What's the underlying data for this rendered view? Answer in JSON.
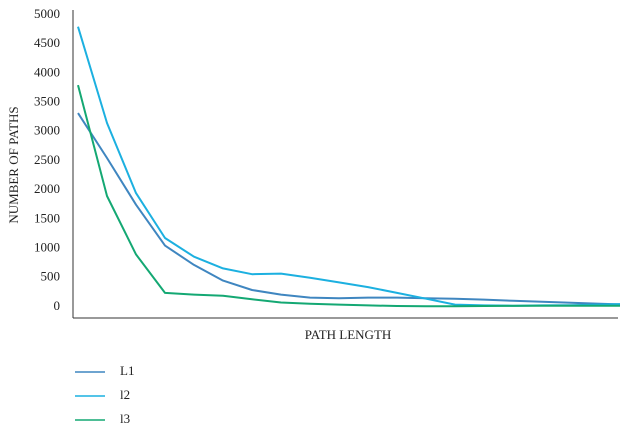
{
  "chart_data": {
    "type": "line",
    "xlabel": "PATH LENGTH",
    "ylabel": "NUMBER OF PATHS",
    "categories": [
      null,
      null,
      null,
      null,
      null,
      null,
      null,
      null,
      null,
      null,
      null,
      null,
      null,
      null,
      null,
      null,
      null,
      null,
      null,
      null
    ],
    "series": [
      {
        "name": "L1",
        "color": "#3f86c0",
        "values": [
          3320,
          2550,
          1750,
          1050,
          720,
          450,
          290,
          210,
          160,
          150,
          160,
          160,
          150,
          140,
          125,
          105,
          90,
          70,
          55,
          40
        ]
      },
      {
        "name": "l2",
        "color": "#1cb0e0",
        "values": [
          4800,
          3150,
          1950,
          1180,
          860,
          660,
          560,
          570,
          500,
          420,
          340,
          240,
          140,
          40,
          25,
          20,
          25,
          30,
          40,
          50
        ]
      },
      {
        "name": "l3",
        "color": "#14a873",
        "values": [
          3800,
          1900,
          900,
          240,
          210,
          190,
          130,
          75,
          55,
          40,
          25,
          15,
          10,
          12,
          15,
          18,
          20,
          20,
          20,
          20
        ]
      }
    ],
    "ylim": [
      -190,
      5000
    ],
    "yticks": [
      0,
      500,
      1000,
      1500,
      2000,
      2500,
      3000,
      3500,
      4000,
      4500,
      5000
    ],
    "grid": false
  }
}
